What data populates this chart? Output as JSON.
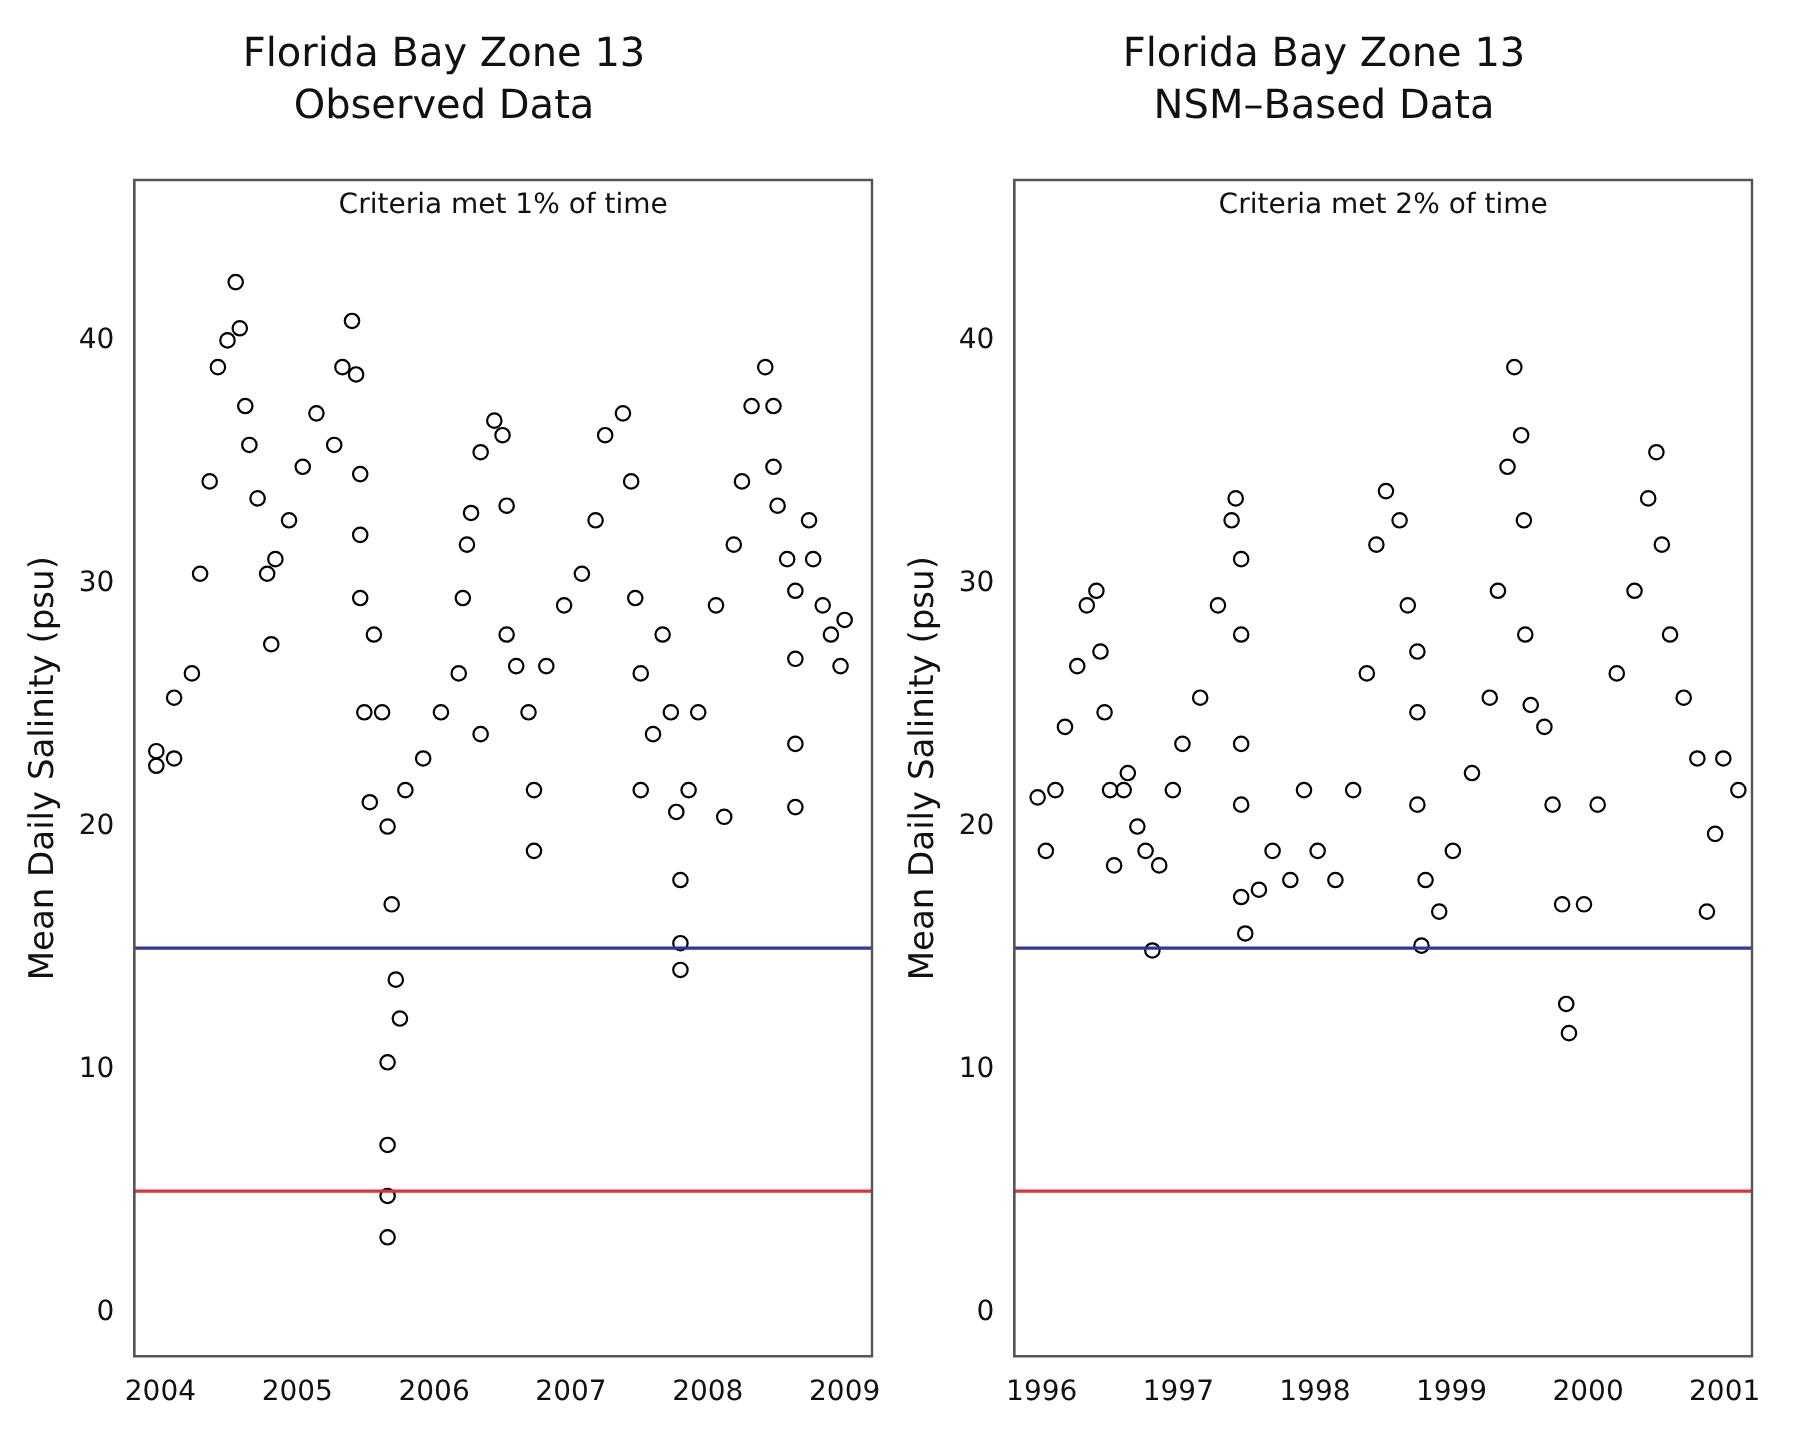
{
  "chart_data": [
    {
      "type": "scatter",
      "title": "Florida Bay Zone 13",
      "subtitle": "Observed Data",
      "ylabel": "Mean Daily Salinity (psu)",
      "annotations": [
        "Criteria met 1% of time"
      ],
      "marker": "circle",
      "grid": false,
      "xlim": [
        2003.81,
        2009.2
      ],
      "ylim": [
        -1.8,
        46.6
      ],
      "xticks": [
        2004,
        2005,
        2006,
        2007,
        2008,
        2009
      ],
      "yticks": [
        0,
        10,
        20,
        30,
        40
      ],
      "ref_lines": [
        {
          "axis": "y",
          "value": 15,
          "color": "#2b3a9a"
        },
        {
          "axis": "y",
          "value": 5,
          "color": "#e0303a"
        }
      ],
      "series": [
        {
          "color": "#000000",
          "x": [
            2003.97,
            2003.97,
            2004.1,
            2004.1,
            2004.23,
            2004.29,
            2004.36,
            2004.42,
            2004.49,
            2004.55,
            2004.58,
            2004.62,
            2004.65,
            2004.71,
            2004.78,
            2004.81,
            2004.84,
            2004.94,
            2005.04,
            2005.14,
            2005.27,
            2005.33,
            2005.4,
            2005.43,
            2005.46,
            2005.46,
            2005.46,
            2005.49,
            2005.53,
            2005.56,
            2005.62,
            2005.66,
            2005.69,
            2005.72,
            2005.75,
            2005.66,
            2005.66,
            2005.66,
            2005.66,
            2005.79,
            2005.92,
            2006.05,
            2006.18,
            2006.21,
            2006.24,
            2006.27,
            2006.34,
            2006.44,
            2006.5,
            2006.53,
            2006.34,
            2006.53,
            2006.6,
            2006.69,
            2006.73,
            2006.73,
            2006.82,
            2006.95,
            2007.08,
            2007.18,
            2007.25,
            2007.38,
            2007.44,
            2007.47,
            2007.51,
            2007.51,
            2007.6,
            2007.67,
            2007.73,
            2007.77,
            2007.8,
            2007.8,
            2007.8,
            2007.86,
            2007.93,
            2008.06,
            2008.12,
            2008.19,
            2008.25,
            2008.32,
            2008.42,
            2008.48,
            2008.48,
            2008.51,
            2008.58,
            2008.64,
            2008.64,
            2008.64,
            2008.64,
            2008.74,
            2008.77,
            2008.84,
            2008.9,
            2008.97,
            2009.0
          ],
          "values": [
            22.5,
            23.1,
            25.3,
            22.8,
            26.3,
            30.4,
            34.2,
            38.9,
            40.0,
            42.4,
            40.5,
            37.3,
            35.7,
            33.5,
            30.4,
            27.5,
            31.0,
            32.6,
            34.8,
            37.0,
            35.7,
            38.9,
            40.8,
            38.6,
            34.5,
            32.0,
            29.4,
            24.7,
            21.0,
            27.9,
            24.7,
            20.0,
            16.8,
            13.7,
            12.1,
            10.3,
            6.9,
            4.8,
            3.1,
            21.5,
            22.8,
            24.7,
            26.3,
            29.4,
            31.6,
            32.9,
            35.4,
            36.7,
            36.1,
            33.2,
            23.8,
            27.9,
            26.6,
            24.7,
            21.5,
            19.0,
            26.6,
            29.1,
            30.4,
            32.6,
            36.1,
            37.0,
            34.2,
            29.4,
            26.3,
            21.5,
            23.8,
            27.9,
            24.7,
            20.6,
            17.8,
            15.2,
            14.1,
            21.5,
            24.7,
            29.1,
            20.4,
            31.6,
            34.2,
            37.3,
            38.9,
            37.3,
            34.8,
            33.2,
            31.0,
            29.7,
            26.9,
            23.4,
            20.8,
            32.6,
            31.0,
            29.1,
            27.9,
            26.6,
            28.5
          ]
        }
      ]
    },
    {
      "type": "scatter",
      "title": "Florida Bay Zone 13",
      "subtitle": "NSM–Based Data",
      "ylabel": "Mean Daily Salinity (psu)",
      "annotations": [
        "Criteria met 2% of time"
      ],
      "marker": "circle",
      "grid": false,
      "xlim": [
        1995.8,
        2001.2
      ],
      "ylim": [
        -1.8,
        46.6
      ],
      "xticks": [
        1996,
        1997,
        1998,
        1999,
        2000,
        2001
      ],
      "yticks": [
        0,
        10,
        20,
        30,
        40
      ],
      "ref_lines": [
        {
          "axis": "y",
          "value": 15,
          "color": "#2b3a9a"
        },
        {
          "axis": "y",
          "value": 5,
          "color": "#e0303a"
        }
      ],
      "series": [
        {
          "color": "#000000",
          "x": [
            1995.97,
            1996.03,
            1996.1,
            1996.17,
            1996.26,
            1996.33,
            1996.4,
            1996.43,
            1996.46,
            1996.5,
            1996.53,
            1996.6,
            1996.63,
            1996.7,
            1996.76,
            1996.81,
            1996.86,
            1996.96,
            1997.03,
            1997.16,
            1997.29,
            1997.39,
            1997.42,
            1997.46,
            1997.46,
            1997.46,
            1997.46,
            1997.46,
            1997.49,
            1997.59,
            1997.69,
            1997.82,
            1997.92,
            1998.02,
            1998.15,
            1998.28,
            1998.38,
            1998.45,
            1998.52,
            1998.62,
            1998.68,
            1998.75,
            1998.75,
            1998.75,
            1998.78,
            1998.81,
            1998.91,
            1999.01,
            1999.15,
            1999.28,
            1999.34,
            1999.41,
            1999.46,
            1999.51,
            1999.53,
            1999.54,
            1999.58,
            1999.68,
            1999.74,
            1999.81,
            1999.84,
            1999.86,
            1999.97,
            2000.07,
            2000.21,
            2000.34,
            2000.44,
            2000.5,
            2000.54,
            2000.6,
            2000.7,
            2000.8,
            2000.87,
            2000.93,
            2000.99,
            2001.1
          ],
          "values": [
            21.2,
            19.0,
            21.5,
            24.1,
            26.6,
            29.1,
            29.7,
            27.2,
            24.7,
            21.5,
            18.4,
            21.5,
            22.2,
            20.0,
            19.0,
            14.9,
            18.4,
            21.5,
            23.4,
            25.3,
            29.1,
            32.6,
            33.5,
            31.0,
            27.9,
            23.4,
            20.9,
            17.1,
            15.6,
            17.4,
            19.0,
            17.8,
            21.5,
            19.0,
            17.8,
            21.5,
            26.3,
            31.6,
            33.8,
            32.6,
            29.1,
            27.2,
            24.7,
            20.9,
            15.1,
            17.8,
            16.5,
            19.0,
            22.2,
            25.3,
            29.7,
            34.8,
            38.9,
            36.1,
            32.6,
            27.9,
            25.0,
            24.1,
            20.9,
            16.8,
            12.7,
            11.5,
            16.8,
            20.9,
            26.3,
            29.7,
            33.5,
            35.4,
            31.6,
            27.9,
            25.3,
            22.8,
            16.5,
            19.7,
            22.8,
            21.5
          ]
        }
      ]
    }
  ]
}
